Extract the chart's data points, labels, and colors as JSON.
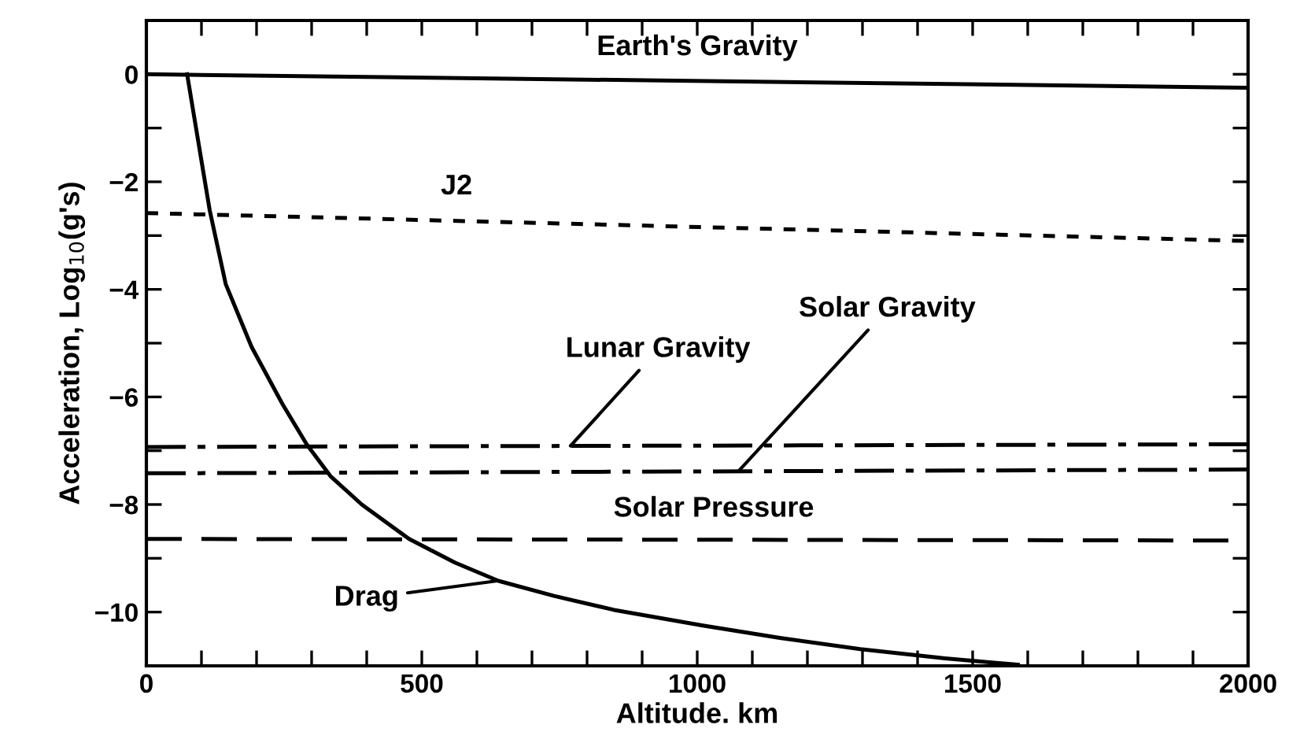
{
  "chart_data": {
    "type": "line",
    "xlabel": "Altitude. km",
    "ylabel": "Acceleration, Log$_{10}$(g's)",
    "xlim": [
      0,
      2000
    ],
    "ylim": [
      -11,
      1
    ],
    "xticks": [
      0,
      {
        "value": 100,
        "label": null
      },
      {
        "value": 200,
        "label": null
      },
      {
        "value": 300,
        "label": null
      },
      {
        "value": 400,
        "label": null
      },
      500,
      {
        "value": 600,
        "label": null
      },
      {
        "value": 700,
        "label": null
      },
      {
        "value": 800,
        "label": null
      },
      {
        "value": 900,
        "label": null
      },
      1000,
      {
        "value": 1100,
        "label": null
      },
      {
        "value": 1200,
        "label": null
      },
      {
        "value": 1300,
        "label": null
      },
      {
        "value": 1400,
        "label": null
      },
      1500,
      {
        "value": 1600,
        "label": null
      },
      {
        "value": 1700,
        "label": null
      },
      {
        "value": 1800,
        "label": null
      },
      {
        "value": 1900,
        "label": null
      },
      2000
    ],
    "yticks": [
      0,
      {
        "value": -1,
        "label": null
      },
      {
        "value": -2,
        "label": "−2"
      },
      {
        "value": -3,
        "label": null
      },
      {
        "value": -4,
        "label": "−4"
      },
      {
        "value": -5,
        "label": null
      },
      {
        "value": -6,
        "label": "−6"
      },
      {
        "value": -7,
        "label": null
      },
      {
        "value": -8,
        "label": "−8"
      },
      {
        "value": -9,
        "label": null
      },
      {
        "value": -10,
        "label": "−10"
      }
    ],
    "grid": false,
    "legend": false,
    "marker": "none",
    "series": [
      {
        "color": "#000000",
        "line_style": "solid",
        "x": [
          0,
          2000
        ],
        "values": [
          0,
          -0.25
        ]
      },
      {
        "color": "#000000",
        "line_style": "dotted",
        "x": [
          0,
          2000
        ],
        "values": [
          -2.58,
          -3.1
        ]
      },
      {
        "color": "#000000",
        "line_style": "dashdot",
        "x": [
          0,
          2000
        ],
        "values": [
          -6.93,
          -6.88
        ]
      },
      {
        "color": "#000000",
        "line_style": "dashdot",
        "x": [
          0,
          2000
        ],
        "values": [
          -7.42,
          -7.35
        ]
      },
      {
        "color": "#000000",
        "line_style": "dashed",
        "x": [
          0,
          2000
        ],
        "values": [
          -8.64,
          -8.67
        ]
      },
      {
        "color": "#000000",
        "line_style": "solid",
        "x": [
          74,
          95,
          115,
          144,
          191,
          248,
          291,
          334,
          391,
          477,
          560,
          639,
          740,
          849,
          1010,
          1150,
          1296,
          1450,
          1582
        ],
        "values": [
          0,
          -1.3,
          -2.53,
          -3.9,
          -5.07,
          -6.15,
          -6.88,
          -7.47,
          -8.0,
          -8.64,
          -9.08,
          -9.42,
          -9.7,
          -9.96,
          -10.25,
          -10.48,
          -10.69,
          -10.86,
          -10.98
        ]
      }
    ],
    "annotations": [
      {
        "text": "Earth's Gravity",
        "x": 1000,
        "y": -0.12
      },
      {
        "text": "J2",
        "x": 563,
        "y": -2.75
      },
      {
        "text": "Lunar Gravity",
        "x": 770,
        "y": -6.91
      },
      {
        "text": "Solar Gravity",
        "x": 1075,
        "y": -7.38
      },
      {
        "text": "Solar Pressure",
        "x": 1030,
        "y": -8.66
      },
      {
        "text": "Drag",
        "x": 637,
        "y": -9.42
      }
    ]
  }
}
